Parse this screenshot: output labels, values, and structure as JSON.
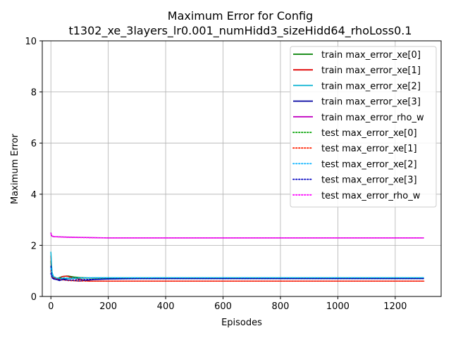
{
  "chart_data": {
    "type": "line",
    "title": [
      "Maximum Error for Config",
      "t1302_xe_3layers_lr0.001_numHidd3_sizeHidd64_rhoLoss0.1"
    ],
    "xlabel": "Episodes",
    "ylabel": "Maximum Error",
    "xlim": [
      -30,
      1360
    ],
    "ylim": [
      0,
      10
    ],
    "xticks": [
      0,
      200,
      400,
      600,
      800,
      1000,
      1200
    ],
    "yticks": [
      0,
      2,
      4,
      6,
      8,
      10
    ],
    "grid": true,
    "legend_position": "top-right",
    "series": [
      {
        "name": "train max_error_xe[0]",
        "color": "#008000",
        "style": "solid",
        "x": [
          0,
          2,
          5,
          10,
          20,
          40,
          60,
          80,
          100,
          120,
          150,
          200,
          300,
          500,
          800,
          1100,
          1300
        ],
        "y": [
          1.4,
          1.0,
          0.85,
          0.75,
          0.7,
          0.78,
          0.8,
          0.76,
          0.74,
          0.73,
          0.72,
          0.72,
          0.72,
          0.72,
          0.72,
          0.72,
          0.72
        ]
      },
      {
        "name": "train max_error_xe[1]",
        "color": "#e00000",
        "style": "solid",
        "x": [
          0,
          2,
          5,
          10,
          20,
          30,
          40,
          55,
          70,
          90,
          110,
          130,
          150,
          200,
          300,
          500,
          800,
          1100,
          1300
        ],
        "y": [
          1.6,
          1.1,
          0.75,
          0.7,
          0.68,
          0.7,
          0.78,
          0.8,
          0.75,
          0.7,
          0.65,
          0.6,
          0.6,
          0.6,
          0.6,
          0.6,
          0.6,
          0.6,
          0.6
        ]
      },
      {
        "name": "train max_error_xe[2]",
        "color": "#00b0d0",
        "style": "solid",
        "x": [
          0,
          2,
          4,
          8,
          15,
          30,
          60,
          100,
          150,
          200,
          300,
          500,
          800,
          1100,
          1300
        ],
        "y": [
          1.75,
          1.3,
          0.95,
          0.8,
          0.72,
          0.7,
          0.7,
          0.72,
          0.73,
          0.73,
          0.73,
          0.73,
          0.73,
          0.73,
          0.73
        ]
      },
      {
        "name": "train max_error_xe[3]",
        "color": "#0000a0",
        "style": "solid",
        "x": [
          0,
          2,
          5,
          10,
          20,
          30,
          45,
          60,
          80,
          100,
          120,
          150,
          200,
          300,
          500,
          800,
          1100,
          1300
        ],
        "y": [
          1.2,
          0.9,
          0.72,
          0.68,
          0.66,
          0.62,
          0.68,
          0.64,
          0.62,
          0.6,
          0.63,
          0.66,
          0.68,
          0.7,
          0.7,
          0.7,
          0.7,
          0.7
        ]
      },
      {
        "name": "train max_error_rho_w",
        "color": "#c000c0",
        "style": "solid",
        "x": [
          0,
          2,
          5,
          10,
          30,
          60,
          100,
          150,
          200,
          300,
          500,
          800,
          1100,
          1300
        ],
        "y": [
          2.5,
          2.38,
          2.35,
          2.34,
          2.33,
          2.32,
          2.31,
          2.3,
          2.29,
          2.29,
          2.29,
          2.29,
          2.29,
          2.29
        ]
      },
      {
        "name": "test max_error_xe[0]",
        "color": "#00a000",
        "style": "dotted",
        "x": [
          0,
          5,
          20,
          60,
          120,
          200,
          400,
          800,
          1300
        ],
        "y": [
          1.0,
          0.8,
          0.72,
          0.72,
          0.72,
          0.72,
          0.72,
          0.72,
          0.72
        ]
      },
      {
        "name": "test max_error_xe[1]",
        "color": "#ff2000",
        "style": "dotted",
        "x": [
          0,
          5,
          20,
          60,
          120,
          200,
          400,
          800,
          1300
        ],
        "y": [
          1.0,
          0.75,
          0.68,
          0.62,
          0.6,
          0.6,
          0.6,
          0.6,
          0.6
        ]
      },
      {
        "name": "test max_error_xe[2]",
        "color": "#00b0ff",
        "style": "dotted",
        "x": [
          0,
          5,
          20,
          60,
          120,
          200,
          400,
          800,
          1300
        ],
        "y": [
          1.1,
          0.8,
          0.72,
          0.72,
          0.73,
          0.73,
          0.73,
          0.73,
          0.73
        ]
      },
      {
        "name": "test max_error_xe[3]",
        "color": "#0000c0",
        "style": "dotted",
        "x": [
          0,
          5,
          20,
          60,
          120,
          200,
          400,
          800,
          1300
        ],
        "y": [
          0.9,
          0.72,
          0.66,
          0.64,
          0.66,
          0.69,
          0.7,
          0.7,
          0.7
        ]
      },
      {
        "name": "test max_error_rho_w",
        "color": "#ff00ff",
        "style": "dotted",
        "x": [
          0,
          5,
          20,
          60,
          120,
          200,
          400,
          800,
          1300
        ],
        "y": [
          2.45,
          2.36,
          2.33,
          2.31,
          2.3,
          2.29,
          2.29,
          2.29,
          2.29
        ]
      }
    ]
  }
}
